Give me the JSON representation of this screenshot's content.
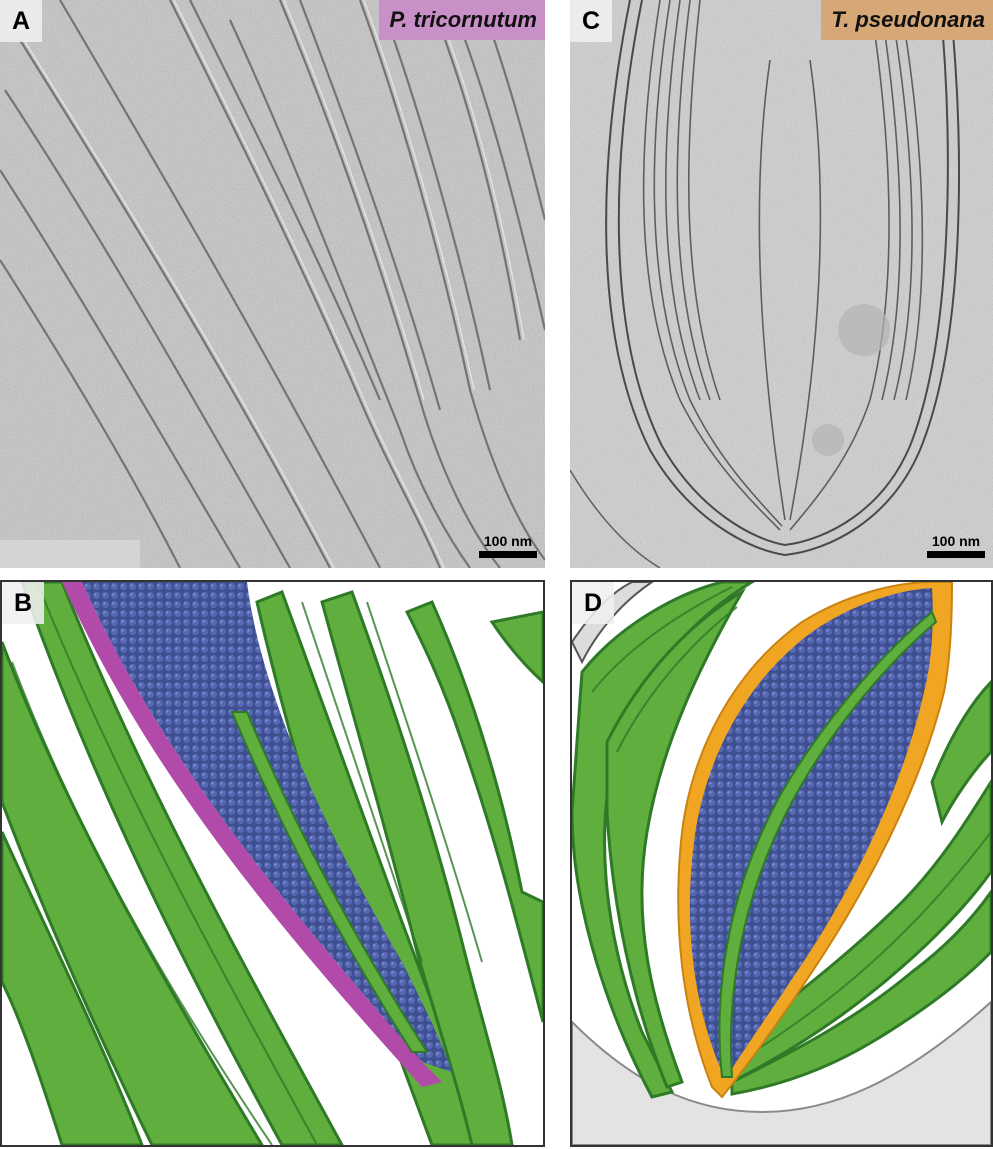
{
  "panels": {
    "a": {
      "label": "A",
      "species": "P. tricornutum",
      "scale_bar": "100 nm"
    },
    "b": {
      "label": "B"
    },
    "c": {
      "label": "C",
      "species": "T. pseudonana",
      "scale_bar": "100 nm"
    },
    "d": {
      "label": "D"
    }
  },
  "colors": {
    "tomogram_gray": "#c9c9c9",
    "thylakoid_green": "#5fae3e",
    "thylakoid_dark_green": "#2f7a27",
    "pyrenoid_blue": "#4a5ea8",
    "p_tricornutum_membrane": "#b24aa9",
    "p_tricornutum_label_bg": "#c98fc7",
    "t_pseudonana_membrane": "#f0a623",
    "t_pseudonana_label_bg": "#d6a877",
    "envelope_white": "#e6e6e6"
  }
}
